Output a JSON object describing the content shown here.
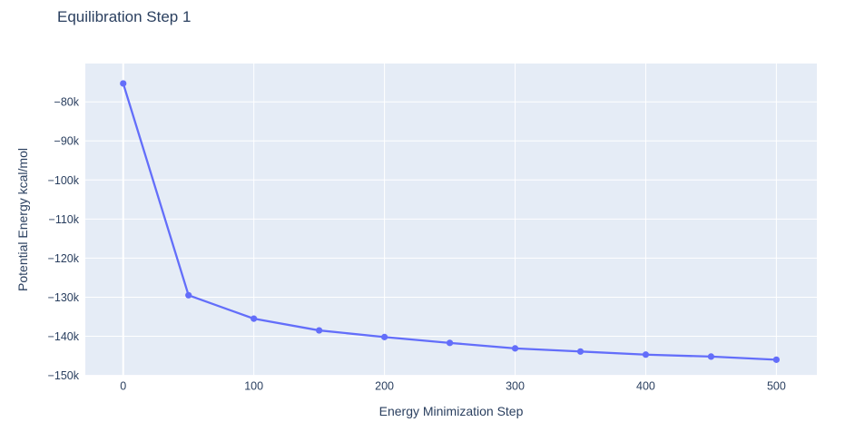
{
  "chart_data": {
    "type": "line",
    "title": "Equilibration Step 1",
    "xlabel": "Energy Minimization Step",
    "ylabel": "Potential Energy kcal/mol",
    "x": [
      0,
      50,
      100,
      150,
      200,
      250,
      300,
      350,
      400,
      450,
      500
    ],
    "y": [
      -75300,
      -129500,
      -135500,
      -138500,
      -140200,
      -141700,
      -143100,
      -143900,
      -144700,
      -145200,
      -146000
    ],
    "x_range": [
      -29,
      531
    ],
    "y_range": [
      -150100,
      -70200
    ],
    "x_ticks": [
      {
        "value": 0,
        "label": "0"
      },
      {
        "value": 100,
        "label": "100"
      },
      {
        "value": 200,
        "label": "200"
      },
      {
        "value": 300,
        "label": "300"
      },
      {
        "value": 400,
        "label": "400"
      },
      {
        "value": 500,
        "label": "500"
      }
    ],
    "y_ticks": [
      {
        "value": -150000,
        "label": "−150k"
      },
      {
        "value": -140000,
        "label": "−140k"
      },
      {
        "value": -130000,
        "label": "−130k"
      },
      {
        "value": -120000,
        "label": "−120k"
      },
      {
        "value": -110000,
        "label": "−110k"
      },
      {
        "value": -100000,
        "label": "−100k"
      },
      {
        "value": -90000,
        "label": "−90k"
      },
      {
        "value": -80000,
        "label": "−80k"
      }
    ],
    "grid": true,
    "legend": "none",
    "style": {
      "line_color": "#636efa",
      "marker_color": "#636efa",
      "plot_bg": "#e5ecf6",
      "grid_color": "#ffffff",
      "text_color": "#2a3f5f",
      "paper_bg": "#ffffff"
    }
  }
}
